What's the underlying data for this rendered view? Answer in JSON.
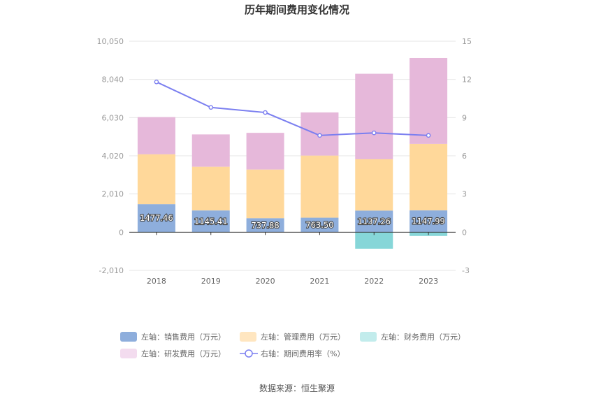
{
  "chart_data": {
    "type": "bar",
    "title": "历年期间费用变化情况",
    "categories": [
      "2018",
      "2019",
      "2020",
      "2021",
      "2022",
      "2023"
    ],
    "left_axis": {
      "ticks": [
        "-2,010",
        "0",
        "2,010",
        "4,020",
        "6,030",
        "8,040",
        "10,050"
      ],
      "ylim": [
        -2010,
        10050
      ]
    },
    "right_axis": {
      "ticks": [
        "-3",
        "0",
        "3",
        "6",
        "9",
        "12",
        "15"
      ],
      "ylim": [
        -3,
        15
      ]
    },
    "stacked": true,
    "series": [
      {
        "name": "左轴：销售费用（万元）",
        "axis": "left",
        "color": "#8eaedc",
        "values": [
          1477.46,
          1145.41,
          737.88,
          763.5,
          1137.26,
          1147.99
        ]
      },
      {
        "name": "左轴：管理费用（万元）",
        "axis": "left",
        "color": "#ffd89a",
        "values": [
          2620,
          2300,
          2560,
          3270,
          2700,
          3500
        ]
      },
      {
        "name": "左轴：财务费用（万元）",
        "axis": "left",
        "color": "#86d6d8",
        "values": [
          -20,
          -15,
          -10,
          -10,
          -870,
          -200
        ]
      },
      {
        "name": "左轴：研发费用（万元）",
        "axis": "left",
        "color": "#e6b8da",
        "values": [
          1960,
          1700,
          1930,
          2270,
          4500,
          4520
        ]
      },
      {
        "name": "右轴：期间费用率（%）",
        "axis": "right",
        "type": "line",
        "color": "#7b7ff0",
        "values": [
          11.8,
          9.8,
          9.4,
          7.6,
          7.8,
          7.6
        ]
      }
    ],
    "data_labels": [
      "1477.46",
      "1145.41",
      "737.88",
      "763.50",
      "1137.26",
      "1147.99"
    ],
    "legend_position": "bottom",
    "grid": true
  },
  "source": "数据来源：恒生聚源"
}
